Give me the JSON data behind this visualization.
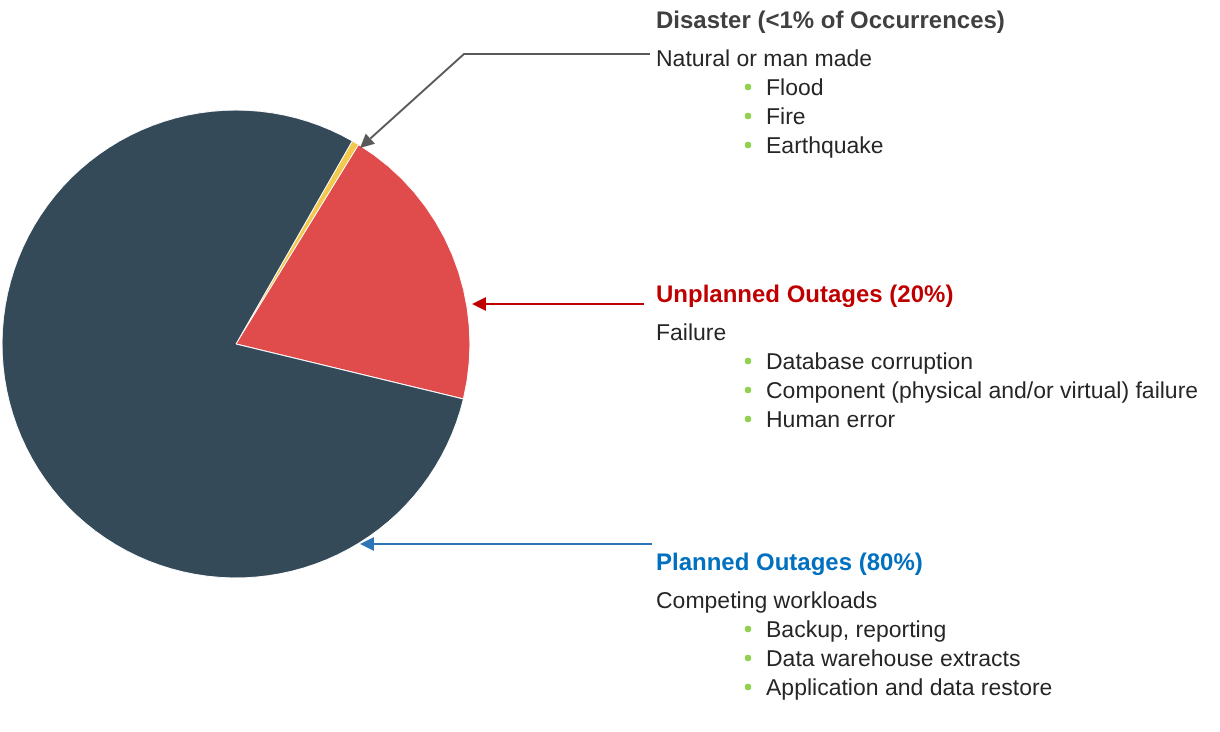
{
  "chart_data": {
    "type": "pie",
    "categories": [
      "Disaster (<1% of Occurrences)",
      "Unplanned Outages (20%)",
      "Planned Outages (80%)"
    ],
    "values": [
      0.5,
      20,
      79.5
    ],
    "colors": [
      "#f2c94c",
      "#e04b4b",
      "#344a59"
    ],
    "annotations": [
      "Natural or man made",
      "Flood",
      "Fire",
      "Earthquake",
      "Failure",
      "Database corruption",
      "Component (physical and/or virtual) failure",
      "Human error",
      "Competing workloads",
      "Backup, reporting",
      "Data warehouse extracts",
      "Application and data restore"
    ]
  }
}
